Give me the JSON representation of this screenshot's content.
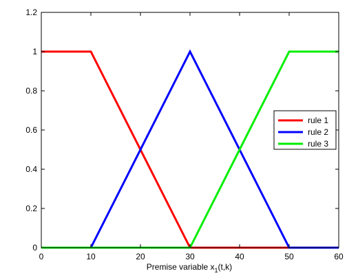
{
  "chart_data": {
    "type": "line",
    "xlabel": "Premise variable x",
    "xlabel_sub": "1",
    "xlabel_tail": "(t,k)",
    "ylabel": "",
    "xlim": [
      0,
      60
    ],
    "ylim": [
      0,
      1.2
    ],
    "x_ticks": [
      0,
      10,
      20,
      30,
      40,
      50,
      60
    ],
    "y_ticks": [
      0,
      0.2,
      0.4,
      0.6,
      0.8,
      1,
      1.2
    ],
    "grid": false,
    "legend_position": "right",
    "series": [
      {
        "name": "rule 1",
        "color": "#ff0000",
        "x": [
          0,
          10,
          30,
          60
        ],
        "y": [
          1,
          1,
          0,
          0
        ]
      },
      {
        "name": "rule 2",
        "color": "#0000ff",
        "x": [
          0,
          10,
          30,
          50,
          60
        ],
        "y": [
          0,
          0,
          1,
          0,
          0
        ]
      },
      {
        "name": "rule 3",
        "color": "#00ee00",
        "x": [
          0,
          30,
          50,
          60
        ],
        "y": [
          0,
          0,
          1,
          1
        ]
      }
    ]
  }
}
